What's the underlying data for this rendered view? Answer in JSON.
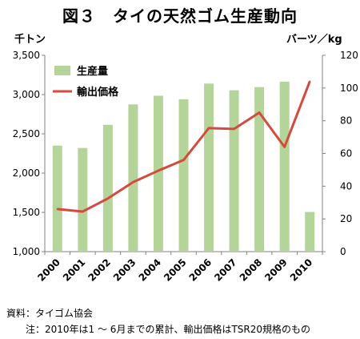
{
  "title": "図３　タイの天然ゴム生産動向",
  "left_unit": "千トン",
  "right_unit": "バーツ／kg",
  "notes": {
    "source": "資料：タイゴム協会",
    "note": "注：2010年は1 ～ 6月までの累計、輸出価格はTSR20規格のもの"
  },
  "colors": {
    "bar": "#b5d49a",
    "line": "#d64a3e",
    "axis": "#808080"
  },
  "chart_data": {
    "type": "bar",
    "categories": [
      "2000",
      "2001",
      "2002",
      "2003",
      "2004",
      "2005",
      "2006",
      "2007",
      "2008",
      "2009",
      "2010"
    ],
    "series": [
      {
        "name": "生産量",
        "type": "bar",
        "axis": "left",
        "values": [
          2350,
          2320,
          2615,
          2875,
          2985,
          2940,
          3140,
          3055,
          3095,
          3165,
          1505
        ]
      },
      {
        "name": "輸出価格",
        "type": "line",
        "axis": "right",
        "values": [
          26,
          24.5,
          32.5,
          42.5,
          49.5,
          56,
          75.5,
          75,
          85,
          64,
          104
        ]
      }
    ],
    "y_left": {
      "min": 1000,
      "max": 3500,
      "ticks": [
        1000,
        1500,
        2000,
        2500,
        3000,
        3500
      ],
      "tick_labels": [
        "1,000",
        "1,500",
        "2,000",
        "2,500",
        "3,000",
        "3,500"
      ]
    },
    "y_right": {
      "min": 0,
      "max": 120,
      "ticks": [
        0,
        20,
        40,
        60,
        80,
        100,
        120
      ]
    },
    "grid": false,
    "legend": "top-left"
  }
}
